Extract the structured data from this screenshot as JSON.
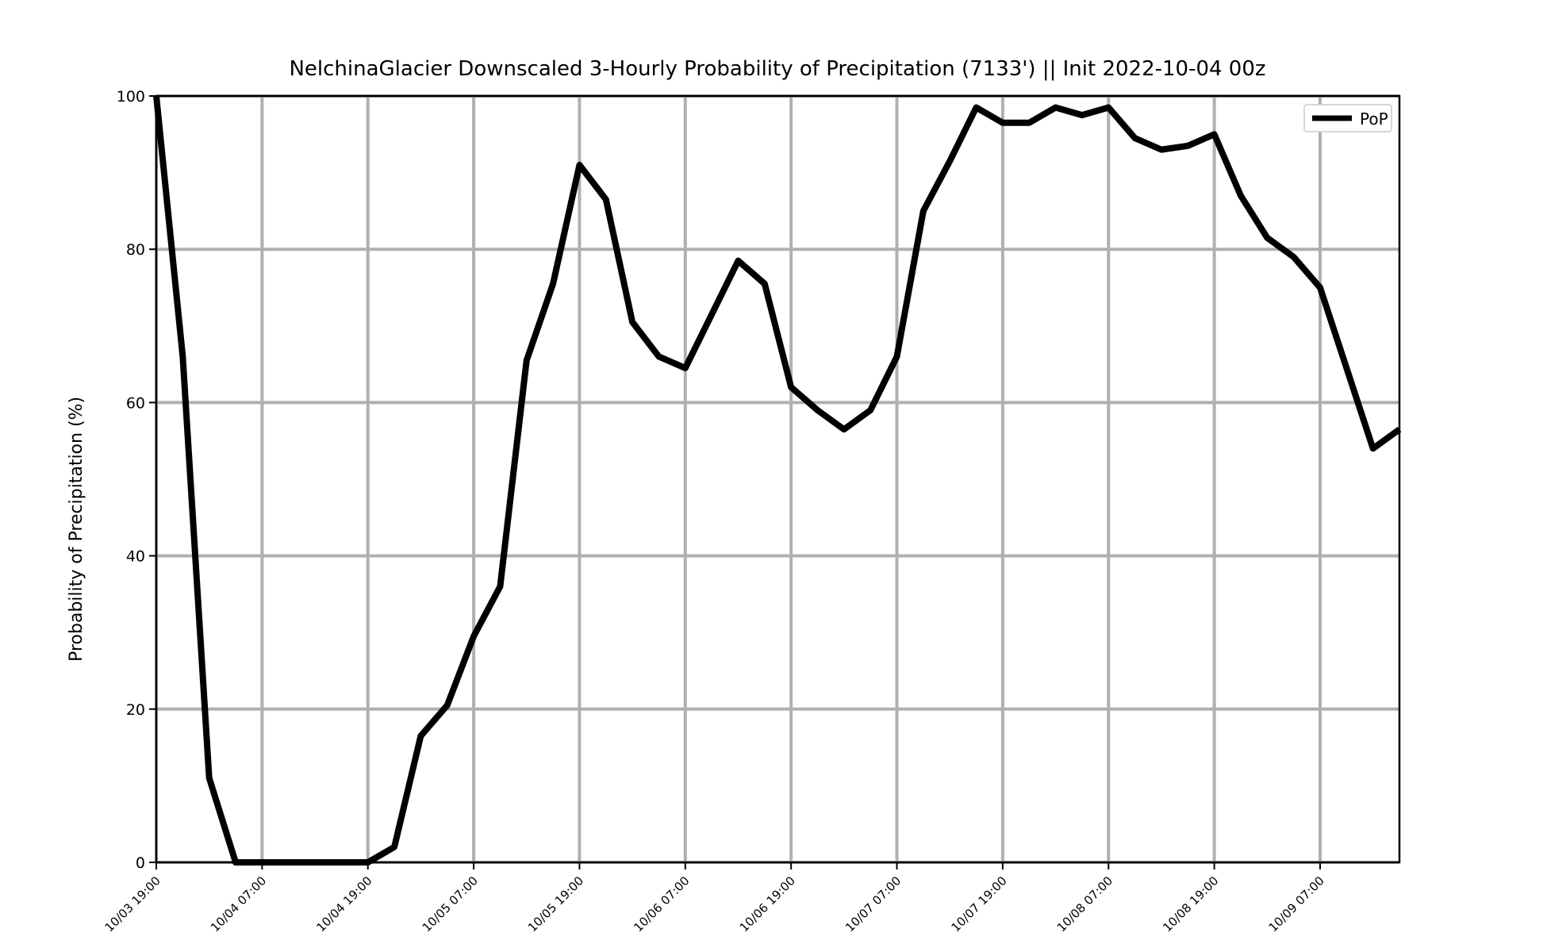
{
  "chart_data": {
    "type": "line",
    "title": "NelchinaGlacier Downscaled 3-Hourly Probability of Precipitation (7133') || Init 2022-10-04 00z",
    "xlabel": "",
    "ylabel": "Probability of Precipitation (%)",
    "ylim": [
      0,
      100
    ],
    "yticks": [
      0,
      20,
      40,
      60,
      80,
      100
    ],
    "xticks": [
      "10/03 19:00",
      "10/04 07:00",
      "10/04 19:00",
      "10/05 07:00",
      "10/05 19:00",
      "10/06 07:00",
      "10/06 19:00",
      "10/07 07:00",
      "10/07 19:00",
      "10/08 07:00",
      "10/08 19:00",
      "10/09 07:00"
    ],
    "x_step_hours": 3,
    "grid": true,
    "legend_position": "top-right",
    "series": [
      {
        "name": "PoP",
        "color": "#000000",
        "x": [
          "10/03 19:00",
          "10/03 22:00",
          "10/04 01:00",
          "10/04 04:00",
          "10/04 07:00",
          "10/04 10:00",
          "10/04 13:00",
          "10/04 16:00",
          "10/04 19:00",
          "10/04 22:00",
          "10/05 01:00",
          "10/05 04:00",
          "10/05 07:00",
          "10/05 10:00",
          "10/05 13:00",
          "10/05 16:00",
          "10/05 19:00",
          "10/05 22:00",
          "10/06 01:00",
          "10/06 04:00",
          "10/06 07:00",
          "10/06 10:00",
          "10/06 13:00",
          "10/06 16:00",
          "10/06 19:00",
          "10/06 22:00",
          "10/07 01:00",
          "10/07 04:00",
          "10/07 07:00",
          "10/07 10:00",
          "10/07 13:00",
          "10/07 16:00",
          "10/07 19:00",
          "10/07 22:00",
          "10/08 01:00",
          "10/08 04:00",
          "10/08 07:00",
          "10/08 10:00",
          "10/08 13:00",
          "10/08 16:00",
          "10/08 19:00",
          "10/08 22:00",
          "10/09 01:00",
          "10/09 04:00",
          "10/09 07:00",
          "10/09 10:00",
          "10/09 13:00",
          "10/09 16:00"
        ],
        "values": [
          100,
          66,
          11,
          0,
          0,
          0,
          0,
          0,
          0,
          2,
          16.5,
          20.5,
          29.5,
          36,
          65.5,
          75.5,
          91,
          86.5,
          70.5,
          66,
          64.5,
          71.5,
          78.5,
          75.5,
          62,
          59,
          56.5,
          59,
          66,
          85,
          91.5,
          98.5,
          96.5,
          96.5,
          98.5,
          97.5,
          98.5,
          94.5,
          93,
          93.5,
          95,
          87,
          81.5,
          79,
          75,
          64.5,
          54,
          56.5
        ]
      }
    ]
  }
}
